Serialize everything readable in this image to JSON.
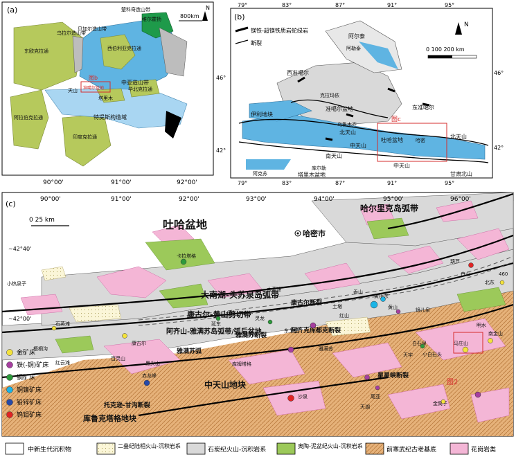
{
  "panel_a": {
    "label": "(a)",
    "scale": "800km",
    "north": "N",
    "regions": [
      "东欧克拉通",
      "乌拉尔造山带",
      "贝加尔造山带",
      "西伯利亚克拉通",
      "中亚造山带",
      "塔里木",
      "华北克拉通",
      "特提斯构造域",
      "阿拉伯克拉通",
      "印度克拉通",
      "楚科奇造山带",
      "维尔霍扬"
    ],
    "inset_label": "图b",
    "inset_sub": "准噶尔盆地",
    "tianshan": "天山",
    "lon_labels": [
      "90°00'",
      "91°00'",
      "92°00'"
    ]
  },
  "panel_b": {
    "label": "(b)",
    "lon_top": [
      "79°",
      "83°",
      "87°",
      "91°",
      "95°"
    ],
    "lon_bottom": [
      "79°",
      "83°",
      "87°",
      "91°",
      "95°"
    ],
    "lat_left": [
      "46°",
      "42°"
    ],
    "lat_right": [
      "46°",
      "42°"
    ],
    "north": "N",
    "scale": "0   100  200 km",
    "legend": [
      "镁铁-超镁铁质岩蛇绿岩",
      "断裂"
    ],
    "labels": {
      "altai": "阿尔泰",
      "altay_city": "阿勒泰",
      "w_junggar": "西准噶尔",
      "karamay": "克拉玛依",
      "junggar_basin": "准噶尔盆地",
      "e_junggar": "东准噶尔",
      "yili": "伊利地块",
      "urumqi": "乌鲁木齐",
      "n_tianshan": "北天山",
      "c_tianshan": "中天山",
      "s_tianshan": "南天山",
      "turpan": "吐哈盆地",
      "hami": "哈密",
      "bei_tianshan": "北天山",
      "korla": "库尔勒",
      "aksu": "阿克苏",
      "tarim": "塔里木盆地",
      "beishan": "甘肃北山",
      "fig_c": "图c"
    }
  },
  "panel_c": {
    "label": "(c)",
    "lon_top": [
      "90°00'",
      "91°00'",
      "92°00'",
      "93°00'",
      "94°00'",
      "95°00'",
      "96°00'"
    ],
    "lat_labels": [
      "~42°40'",
      "~42°00'"
    ],
    "scale": "0   25 km",
    "north": "N",
    "title_basin": "吐哈盆地",
    "hami_city": "哈密市",
    "harlik": "哈尔里克岛弧带",
    "danan": "大南湖-头苏泉岛弧带",
    "kanggur": "康古尔-黄山剪切带",
    "aqishan": "阿齐山-雅满苏岛弧带/弧后盆地",
    "kanggur_fault": "康古尔断裂",
    "yamansu_fault": "雅满苏断裂",
    "yamansu_arc": "雅满苏弧",
    "aqikekuduk": "阿齐克库都克断裂",
    "ctianshan_block": "中天山地块",
    "xingxingxia": "星星峡断裂",
    "kumishi": "库鲁克塔格地块",
    "tuokexun": "托克逊-甘沟断裂",
    "fig2": "图2",
    "places": [
      "卡拉塔格",
      "小热泉子",
      "石英滩",
      "康古尔",
      "土墩",
      "香山",
      "葫芦",
      "白山",
      "北东",
      "红山",
      "大草滩",
      "马庄山",
      "黄山东",
      "梧桐沟",
      "红云滩",
      "百灵山",
      "黑尖山",
      "赤龙峰",
      "库姆塔格",
      "尾亚",
      "天湖",
      "沙泉",
      "金窝子",
      "雅满苏",
      "黄山",
      "镜儿泉",
      "土屋",
      "延东",
      "灵龙",
      "东戈壁",
      "白石泉",
      "天宇",
      "马庄山",
      "磁海",
      "460",
      "南金山",
      "明水",
      "小白石头"
    ],
    "legend_deposits": [
      "金矿床",
      "铁(-铜)矿床",
      "铜矿床",
      "铜镍矿床",
      "铅锌矿床",
      "钨钼矿床"
    ],
    "legend_deposit_colors": [
      "#f3e23c",
      "#a63fa0",
      "#2d9a3c",
      "#1bb4e6",
      "#274aa8",
      "#e02424"
    ],
    "legend_units": [
      "中新生代沉积物",
      "二叠纪陆相火山-沉积岩系",
      "石炭纪火山-沉积岩系",
      "奥陶-泥盆纪火山-沉积岩系",
      "前寒武纪古老基底",
      "花岗岩类"
    ],
    "legend_unit_colors": [
      "#ffffff",
      "#fbf6d8",
      "#d9d9d9",
      "#9cc95a",
      "#e6b27a",
      "#f4b6d6"
    ]
  }
}
